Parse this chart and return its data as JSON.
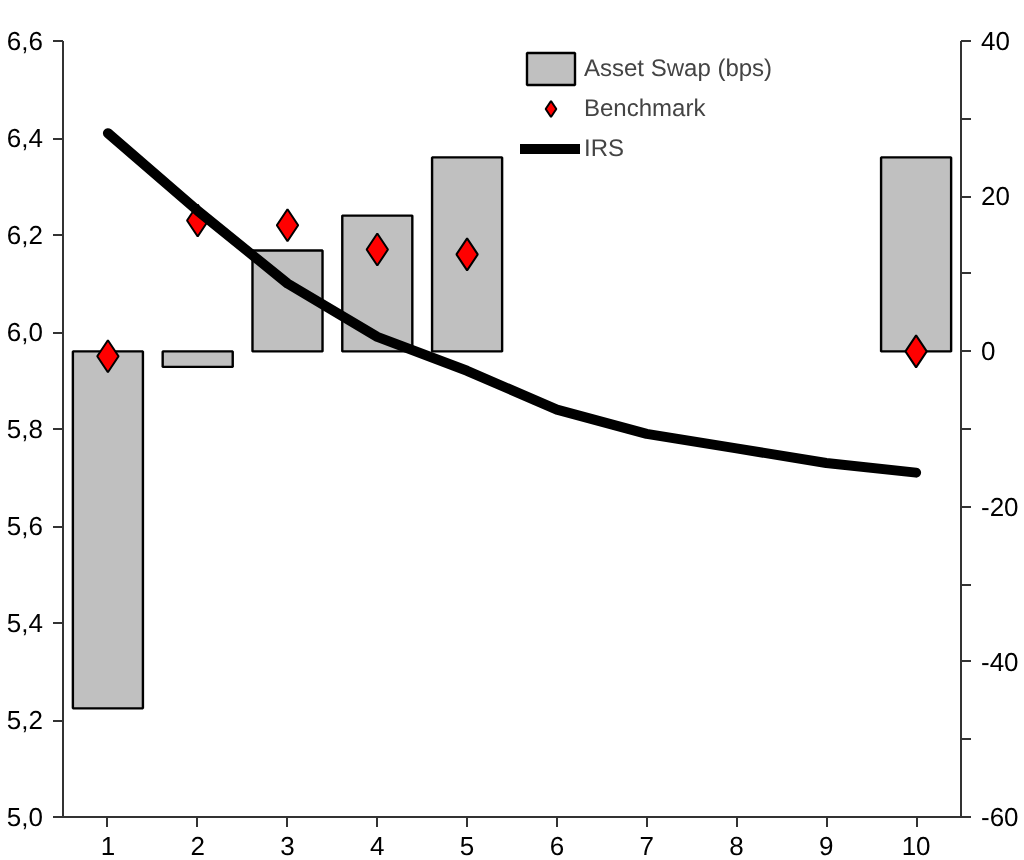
{
  "chart_data": {
    "type": "bar",
    "categories": [
      "1",
      "2",
      "3",
      "4",
      "5",
      "6",
      "7",
      "8",
      "9",
      "10"
    ],
    "series": [
      {
        "name": "Asset Swap (bps)",
        "axis": "y2",
        "color": "#c0c0c0",
        "values": [
          -46,
          -2,
          13,
          17.5,
          25,
          null,
          null,
          null,
          null,
          25
        ]
      },
      {
        "name": "Benchmark",
        "type": "scatter",
        "marker": "diamond",
        "color": "#ff0000",
        "values": [
          5.95,
          6.23,
          6.22,
          6.17,
          6.16,
          null,
          null,
          null,
          null,
          5.96
        ]
      },
      {
        "name": "IRS",
        "type": "line",
        "color": "#000000",
        "values": [
          6.41,
          6.25,
          6.1,
          5.99,
          5.92,
          5.84,
          5.79,
          5.76,
          5.73,
          5.71
        ]
      }
    ],
    "ylim": [
      5.0,
      6.6
    ],
    "yticks": [
      {
        "value": 5.0,
        "label": "5,0"
      },
      {
        "value": 5.2,
        "label": "5,2"
      },
      {
        "value": 5.4,
        "label": "5,4"
      },
      {
        "value": 5.6,
        "label": "5,6"
      },
      {
        "value": 5.8,
        "label": "5,8"
      },
      {
        "value": 6.0,
        "label": "6,0"
      },
      {
        "value": 6.2,
        "label": "6,2"
      },
      {
        "value": 6.4,
        "label": "6,4"
      },
      {
        "value": 6.6,
        "label": "6,6"
      }
    ],
    "y2lim": [
      -60,
      40
    ],
    "y2ticks": [
      -60,
      {
        "value": -50,
        "label": null
      },
      -40,
      {
        "value": -30,
        "label": null
      },
      -20,
      {
        "value": -10,
        "label": null
      },
      0,
      {
        "value": 10,
        "label": null
      },
      20,
      {
        "value": 30,
        "label": null
      },
      40
    ],
    "legend": "top right",
    "grid": false
  }
}
